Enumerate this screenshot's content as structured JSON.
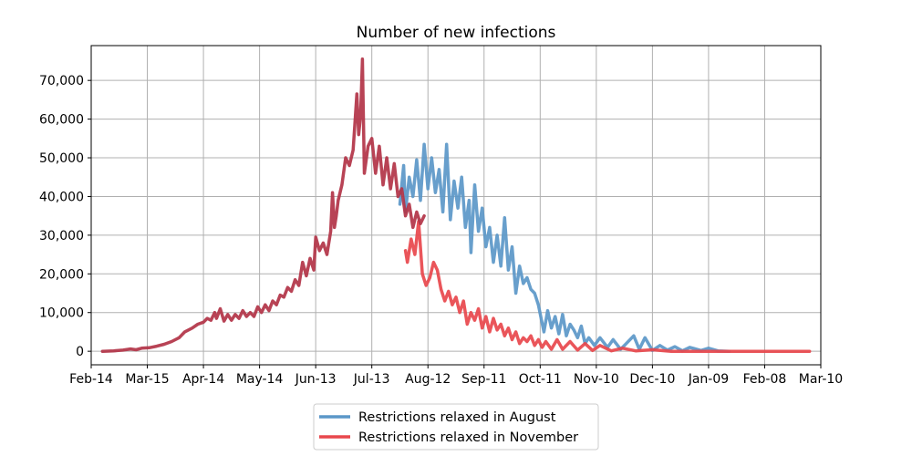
{
  "chart_data": {
    "type": "line",
    "title": "Number of new infections",
    "xlabel": "",
    "ylabel": "",
    "x_unit": "date",
    "x_range": [
      "2020-02-14",
      "2021-03-10"
    ],
    "x_ticks": [
      {
        "label": "Feb-14",
        "date": "2020-02-14"
      },
      {
        "label": "Mar-15",
        "date": "2020-03-15"
      },
      {
        "label": "Apr-14",
        "date": "2020-04-14"
      },
      {
        "label": "May-14",
        "date": "2020-05-14"
      },
      {
        "label": "Jun-13",
        "date": "2020-06-13"
      },
      {
        "label": "Jul-13",
        "date": "2020-07-13"
      },
      {
        "label": "Aug-12",
        "date": "2020-08-12"
      },
      {
        "label": "Sep-11",
        "date": "2020-09-11"
      },
      {
        "label": "Oct-11",
        "date": "2020-10-11"
      },
      {
        "label": "Nov-10",
        "date": "2020-11-10"
      },
      {
        "label": "Dec-10",
        "date": "2020-12-10"
      },
      {
        "label": "Jan-09",
        "date": "2021-01-09"
      },
      {
        "label": "Feb-08",
        "date": "2021-02-08"
      },
      {
        "label": "Mar-10",
        "date": "2021-03-10"
      }
    ],
    "ylim": [
      -3500,
      79000
    ],
    "y_ticks": [
      {
        "label": "0",
        "value": 0
      },
      {
        "label": "10,000",
        "value": 10000
      },
      {
        "label": "20,000",
        "value": 20000
      },
      {
        "label": "30,000",
        "value": 30000
      },
      {
        "label": "40,000",
        "value": 40000
      },
      {
        "label": "50,000",
        "value": 50000
      },
      {
        "label": "60,000",
        "value": 60000
      },
      {
        "label": "70,000",
        "value": 70000
      }
    ],
    "grid": true,
    "legend_position": "bottom-center",
    "series": [
      {
        "name": "Restrictions relaxed in August",
        "color": "#5b97c8",
        "points": [
          [
            "2020-07-28",
            38000
          ],
          [
            "2020-07-30",
            48000
          ],
          [
            "2020-07-31",
            36000
          ],
          [
            "2020-08-02",
            45000
          ],
          [
            "2020-08-04",
            40000
          ],
          [
            "2020-08-06",
            49500
          ],
          [
            "2020-08-08",
            39000
          ],
          [
            "2020-08-10",
            53500
          ],
          [
            "2020-08-12",
            42000
          ],
          [
            "2020-08-14",
            50000
          ],
          [
            "2020-08-16",
            41000
          ],
          [
            "2020-08-18",
            47000
          ],
          [
            "2020-08-20",
            36000
          ],
          [
            "2020-08-22",
            53500
          ],
          [
            "2020-08-24",
            34000
          ],
          [
            "2020-08-26",
            44000
          ],
          [
            "2020-08-28",
            37000
          ],
          [
            "2020-08-30",
            45000
          ],
          [
            "2020-09-01",
            32000
          ],
          [
            "2020-09-03",
            39000
          ],
          [
            "2020-09-04",
            25500
          ],
          [
            "2020-09-06",
            43000
          ],
          [
            "2020-09-08",
            31000
          ],
          [
            "2020-09-10",
            37000
          ],
          [
            "2020-09-12",
            27000
          ],
          [
            "2020-09-14",
            32000
          ],
          [
            "2020-09-16",
            23000
          ],
          [
            "2020-09-18",
            30000
          ],
          [
            "2020-09-20",
            22000
          ],
          [
            "2020-09-22",
            34500
          ],
          [
            "2020-09-24",
            21000
          ],
          [
            "2020-09-26",
            27000
          ],
          [
            "2020-09-28",
            15000
          ],
          [
            "2020-09-30",
            22000
          ],
          [
            "2020-10-02",
            17500
          ],
          [
            "2020-10-04",
            19000
          ],
          [
            "2020-10-06",
            16000
          ],
          [
            "2020-10-08",
            15000
          ],
          [
            "2020-10-10",
            12000
          ],
          [
            "2020-10-13",
            5000
          ],
          [
            "2020-10-15",
            10500
          ],
          [
            "2020-10-17",
            6000
          ],
          [
            "2020-10-19",
            9000
          ],
          [
            "2020-10-21",
            4500
          ],
          [
            "2020-10-23",
            9500
          ],
          [
            "2020-10-25",
            4000
          ],
          [
            "2020-10-27",
            7000
          ],
          [
            "2020-10-29",
            5500
          ],
          [
            "2020-10-31",
            3500
          ],
          [
            "2020-11-02",
            6500
          ],
          [
            "2020-11-04",
            2000
          ],
          [
            "2020-11-06",
            3500
          ],
          [
            "2020-11-09",
            1500
          ],
          [
            "2020-11-12",
            3500
          ],
          [
            "2020-11-16",
            1000
          ],
          [
            "2020-11-19",
            3000
          ],
          [
            "2020-11-23",
            500
          ],
          [
            "2020-11-26",
            2000
          ],
          [
            "2020-11-30",
            4000
          ],
          [
            "2020-12-03",
            500
          ],
          [
            "2020-12-06",
            3500
          ],
          [
            "2020-12-10",
            200
          ],
          [
            "2020-12-14",
            1500
          ],
          [
            "2020-12-18",
            300
          ],
          [
            "2020-12-22",
            1200
          ],
          [
            "2020-12-26",
            100
          ],
          [
            "2020-12-30",
            1000
          ],
          [
            "2021-01-05",
            200
          ],
          [
            "2021-01-09",
            800
          ],
          [
            "2021-01-14",
            100
          ],
          [
            "2021-01-20",
            0
          ]
        ]
      },
      {
        "name": "Restrictions relaxed in November",
        "color": "#e8474c",
        "points": [
          [
            "2020-07-31",
            26000
          ],
          [
            "2020-08-01",
            23000
          ],
          [
            "2020-08-03",
            29000
          ],
          [
            "2020-08-05",
            25000
          ],
          [
            "2020-08-07",
            33500
          ],
          [
            "2020-08-09",
            20000
          ],
          [
            "2020-08-11",
            17000
          ],
          [
            "2020-08-13",
            19000
          ],
          [
            "2020-08-15",
            23000
          ],
          [
            "2020-08-17",
            21000
          ],
          [
            "2020-08-19",
            16000
          ],
          [
            "2020-08-21",
            13000
          ],
          [
            "2020-08-23",
            15500
          ],
          [
            "2020-08-25",
            12000
          ],
          [
            "2020-08-27",
            14000
          ],
          [
            "2020-08-29",
            10000
          ],
          [
            "2020-08-31",
            13000
          ],
          [
            "2020-09-02",
            7000
          ],
          [
            "2020-09-04",
            10000
          ],
          [
            "2020-09-06",
            8000
          ],
          [
            "2020-09-08",
            11000
          ],
          [
            "2020-09-10",
            6000
          ],
          [
            "2020-09-12",
            9000
          ],
          [
            "2020-09-14",
            5000
          ],
          [
            "2020-09-16",
            8500
          ],
          [
            "2020-09-18",
            5500
          ],
          [
            "2020-09-20",
            7000
          ],
          [
            "2020-09-22",
            4000
          ],
          [
            "2020-09-24",
            6000
          ],
          [
            "2020-09-26",
            3000
          ],
          [
            "2020-09-28",
            5000
          ],
          [
            "2020-09-30",
            2000
          ],
          [
            "2020-10-02",
            3500
          ],
          [
            "2020-10-04",
            2500
          ],
          [
            "2020-10-06",
            4000
          ],
          [
            "2020-10-08",
            1500
          ],
          [
            "2020-10-10",
            3000
          ],
          [
            "2020-10-12",
            1000
          ],
          [
            "2020-10-14",
            2500
          ],
          [
            "2020-10-17",
            500
          ],
          [
            "2020-10-20",
            3000
          ],
          [
            "2020-10-23",
            500
          ],
          [
            "2020-10-27",
            2500
          ],
          [
            "2020-10-31",
            300
          ],
          [
            "2020-11-04",
            2000
          ],
          [
            "2020-11-08",
            200
          ],
          [
            "2020-11-12",
            1500
          ],
          [
            "2020-11-18",
            100
          ],
          [
            "2020-11-24",
            800
          ],
          [
            "2020-12-01",
            100
          ],
          [
            "2020-12-10",
            400
          ],
          [
            "2020-12-20",
            0
          ],
          [
            "2021-03-04",
            0
          ]
        ]
      },
      {
        "name": "",
        "color": "#b23347",
        "points": [
          [
            "2020-02-20",
            0
          ],
          [
            "2020-02-26",
            100
          ],
          [
            "2020-03-02",
            300
          ],
          [
            "2020-03-06",
            600
          ],
          [
            "2020-03-09",
            400
          ],
          [
            "2020-03-12",
            800
          ],
          [
            "2020-03-16",
            900
          ],
          [
            "2020-03-20",
            1300
          ],
          [
            "2020-03-24",
            1800
          ],
          [
            "2020-03-28",
            2500
          ],
          [
            "2020-04-01",
            3500
          ],
          [
            "2020-04-04",
            5000
          ],
          [
            "2020-04-08",
            6000
          ],
          [
            "2020-04-11",
            7000
          ],
          [
            "2020-04-14",
            7500
          ],
          [
            "2020-04-16",
            8500
          ],
          [
            "2020-04-18",
            8000
          ],
          [
            "2020-04-20",
            10000
          ],
          [
            "2020-04-21",
            8500
          ],
          [
            "2020-04-23",
            11000
          ],
          [
            "2020-04-25",
            7800
          ],
          [
            "2020-04-27",
            9500
          ],
          [
            "2020-04-29",
            8000
          ],
          [
            "2020-05-01",
            9500
          ],
          [
            "2020-05-03",
            8500
          ],
          [
            "2020-05-05",
            10500
          ],
          [
            "2020-05-07",
            9000
          ],
          [
            "2020-05-09",
            10000
          ],
          [
            "2020-05-11",
            9000
          ],
          [
            "2020-05-13",
            11500
          ],
          [
            "2020-05-15",
            10000
          ],
          [
            "2020-05-17",
            12000
          ],
          [
            "2020-05-19",
            10500
          ],
          [
            "2020-05-21",
            13000
          ],
          [
            "2020-05-23",
            12000
          ],
          [
            "2020-05-25",
            14500
          ],
          [
            "2020-05-27",
            14000
          ],
          [
            "2020-05-29",
            16500
          ],
          [
            "2020-05-31",
            15500
          ],
          [
            "2020-06-02",
            18500
          ],
          [
            "2020-06-04",
            17000
          ],
          [
            "2020-06-06",
            23000
          ],
          [
            "2020-06-08",
            19500
          ],
          [
            "2020-06-10",
            24000
          ],
          [
            "2020-06-12",
            21000
          ],
          [
            "2020-06-13",
            29500
          ],
          [
            "2020-06-15",
            26000
          ],
          [
            "2020-06-17",
            28000
          ],
          [
            "2020-06-19",
            25000
          ],
          [
            "2020-06-21",
            31000
          ],
          [
            "2020-06-22",
            41000
          ],
          [
            "2020-06-23",
            32000
          ],
          [
            "2020-06-24",
            35000
          ],
          [
            "2020-06-25",
            39000
          ],
          [
            "2020-06-27",
            43000
          ],
          [
            "2020-06-29",
            50000
          ],
          [
            "2020-07-01",
            48000
          ],
          [
            "2020-07-03",
            52000
          ],
          [
            "2020-07-05",
            66500
          ],
          [
            "2020-07-06",
            56000
          ],
          [
            "2020-07-07",
            61000
          ],
          [
            "2020-07-08",
            75500
          ],
          [
            "2020-07-09",
            46000
          ],
          [
            "2020-07-11",
            53000
          ],
          [
            "2020-07-13",
            55000
          ],
          [
            "2020-07-15",
            46000
          ],
          [
            "2020-07-17",
            53000
          ],
          [
            "2020-07-19",
            43000
          ],
          [
            "2020-07-21",
            50000
          ],
          [
            "2020-07-23",
            42000
          ],
          [
            "2020-07-25",
            48500
          ],
          [
            "2020-07-27",
            40000
          ],
          [
            "2020-07-29",
            42000
          ],
          [
            "2020-07-31",
            35000
          ],
          [
            "2020-08-02",
            38000
          ],
          [
            "2020-08-04",
            32000
          ],
          [
            "2020-08-06",
            36000
          ],
          [
            "2020-08-08",
            33000
          ],
          [
            "2020-08-10",
            35000
          ]
        ]
      }
    ]
  }
}
